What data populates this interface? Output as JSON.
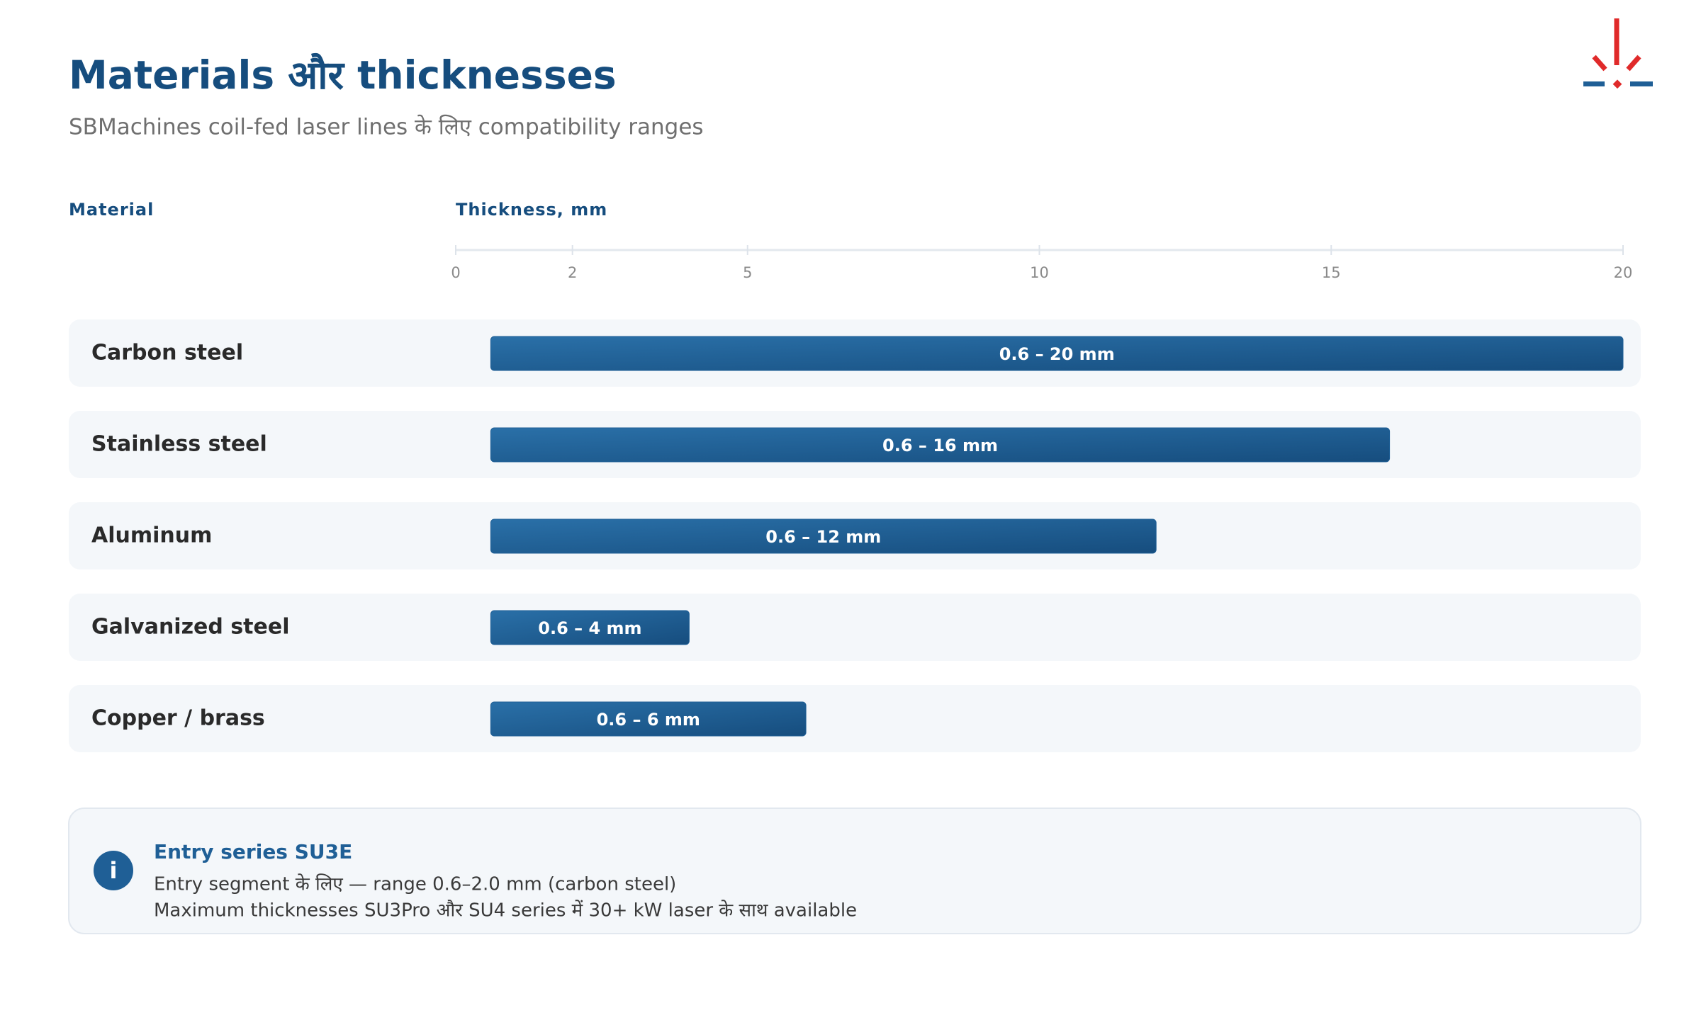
{
  "chart_data": {
    "type": "range-bar",
    "title": "Materials और thicknesses",
    "subtitle": "SBMachines coil-fed laser lines के लिए compatibility ranges",
    "category_label": "Material",
    "x_label": "Thickness, mm",
    "categories": [
      "Carbon steel",
      "Stainless steel",
      "Aluminum",
      "Galvanized steel",
      "Copper / brass"
    ],
    "low": [
      0.6,
      0.6,
      0.6,
      0.6,
      0.6
    ],
    "high": [
      20,
      16,
      12,
      4,
      6
    ],
    "value_labels": [
      "0.6 – 20 mm",
      "0.6 – 16 mm",
      "0.6 – 12 mm",
      "0.6 – 4 mm",
      "0.6 – 6 mm"
    ],
    "color": "#1f5f96",
    "xlim": [
      0,
      20
    ],
    "xticks": [
      0,
      2,
      5,
      10,
      15,
      20
    ]
  },
  "note": {
    "title": "Entry series SU3E",
    "lines": [
      "Entry segment के लिए — range 0.6–2.0 mm (carbon steel)",
      "Maximum thicknesses SU3Pro और SU4 series में 30+ kW laser के साथ available"
    ]
  }
}
